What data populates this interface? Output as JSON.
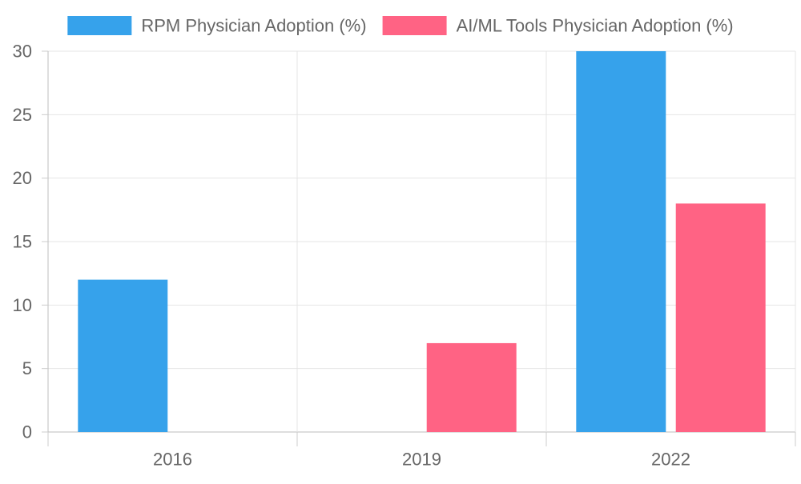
{
  "chart_data": {
    "type": "bar",
    "categories": [
      "2016",
      "2019",
      "2022"
    ],
    "series": [
      {
        "name": "RPM Physician Adoption (%)",
        "values": [
          12,
          null,
          30
        ],
        "color": "#36A2EB"
      },
      {
        "name": "AI/ML Tools Physician Adoption (%)",
        "values": [
          null,
          7,
          18
        ],
        "color": "#FF6384"
      }
    ],
    "ylim": [
      0,
      30
    ],
    "yticks": [
      0,
      5,
      10,
      15,
      20,
      25,
      30
    ],
    "grid": true,
    "legend_position": "top"
  }
}
